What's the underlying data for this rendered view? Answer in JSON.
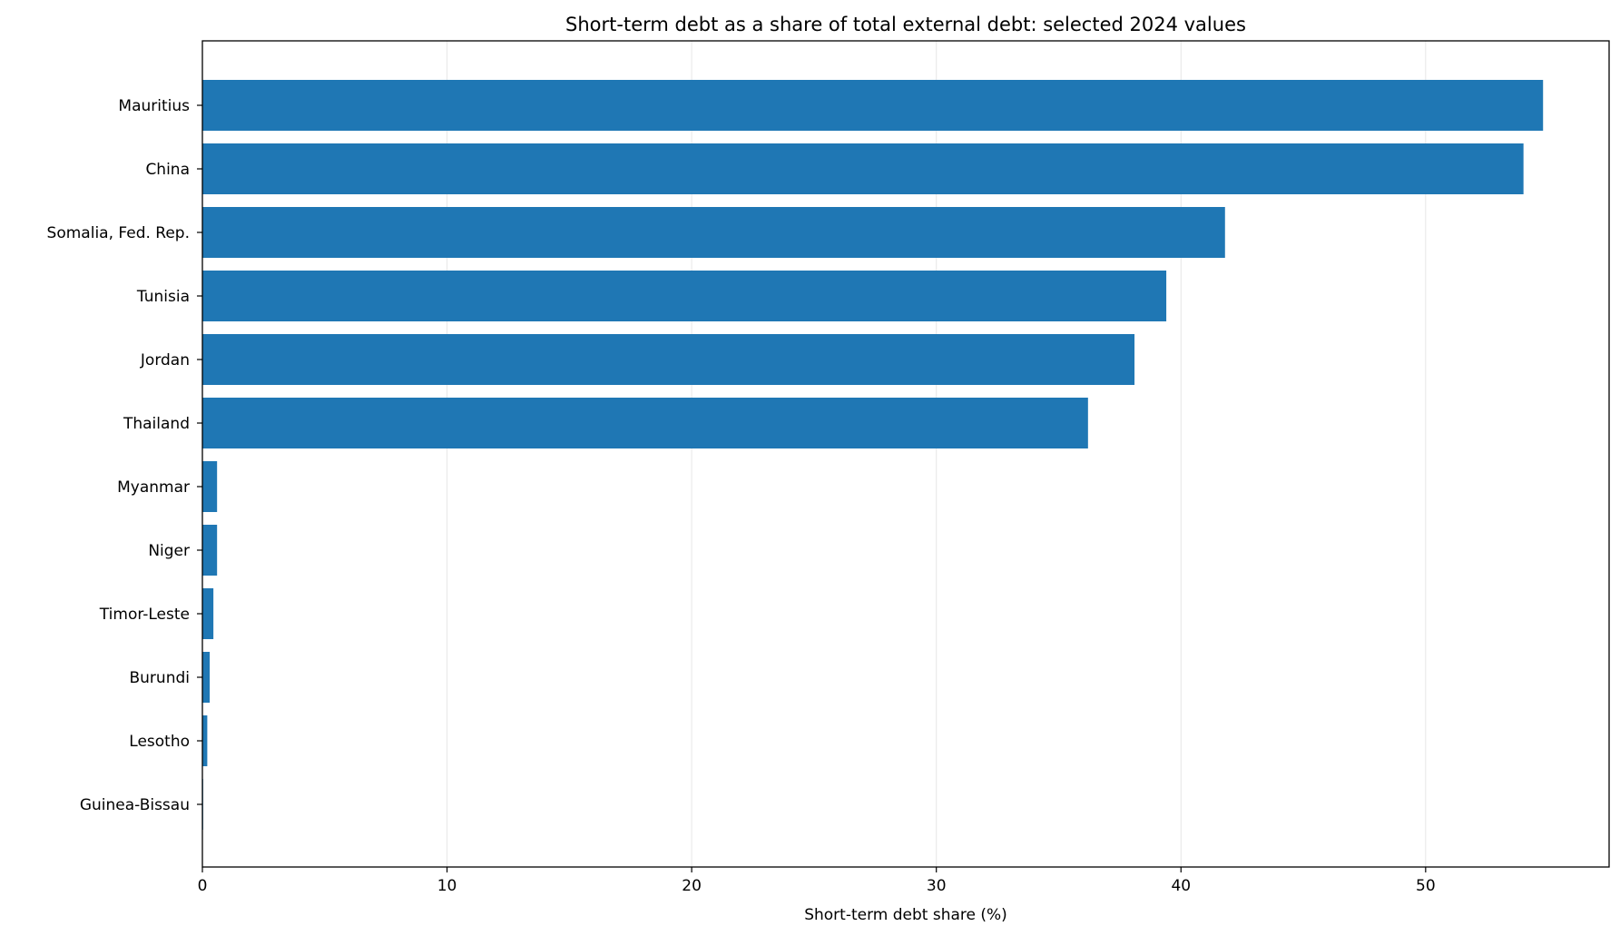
{
  "chart_data": {
    "type": "bar",
    "orientation": "horizontal",
    "title": "Short-term debt as a share of total external debt: selected 2024 values",
    "xlabel": "Short-term debt share (%)",
    "ylabel": "",
    "xlim": [
      0,
      57.5
    ],
    "xticks": [
      0,
      10,
      20,
      30,
      40,
      50
    ],
    "grid": "vertical",
    "bar_color": "#1f77b4",
    "categories": [
      "Mauritius",
      "China",
      "Somalia, Fed. Rep.",
      "Tunisia",
      "Jordan",
      "Thailand",
      "Myanmar",
      "Niger",
      "Timor-Leste",
      "Burundi",
      "Lesotho",
      "Guinea-Bissau"
    ],
    "values": [
      54.8,
      54.0,
      41.8,
      39.4,
      38.1,
      36.2,
      0.6,
      0.6,
      0.45,
      0.3,
      0.2,
      0.03
    ]
  }
}
